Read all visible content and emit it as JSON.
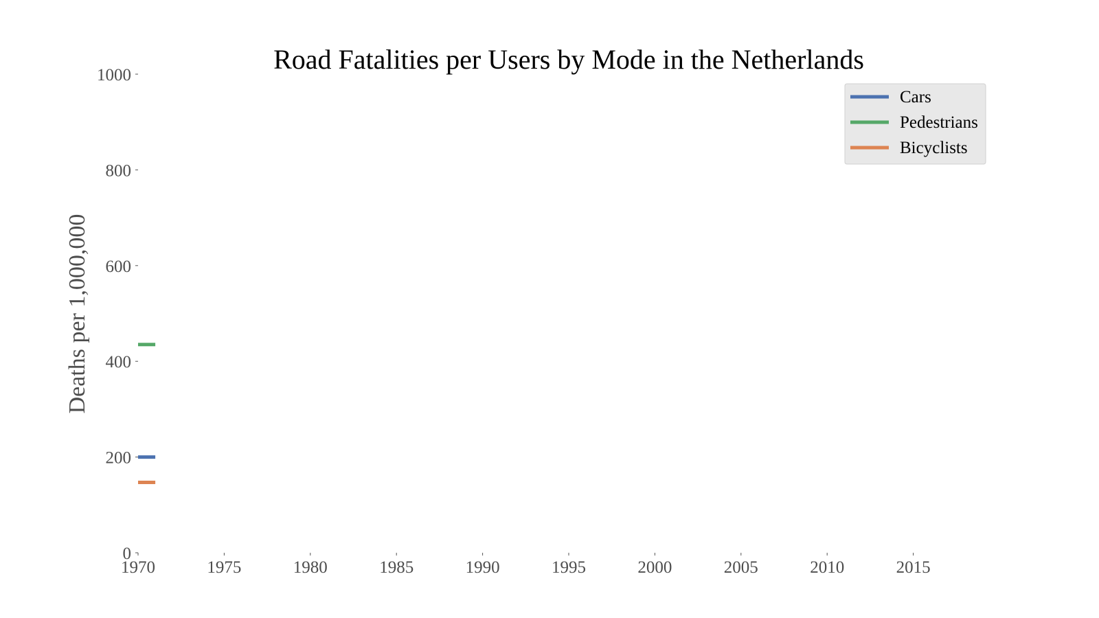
{
  "chart_data": {
    "type": "line",
    "title": "Road Fatalities per Users by Mode in the Netherlands",
    "xlabel": "",
    "ylabel": "Deaths per 1,000,000",
    "xlim": [
      1970,
      2020
    ],
    "ylim": [
      0,
      1000
    ],
    "x_ticks": [
      1970,
      1975,
      1980,
      1985,
      1990,
      1995,
      2000,
      2005,
      2010,
      2015
    ],
    "y_ticks": [
      0,
      200,
      400,
      600,
      800,
      1000
    ],
    "grid": false,
    "legend_position": "top-right",
    "series": [
      {
        "name": "Cars",
        "color": "#4c72b0",
        "x": [
          1970,
          1971
        ],
        "y": [
          200,
          200
        ]
      },
      {
        "name": "Pedestrians",
        "color": "#55a868",
        "x": [
          1970,
          1971
        ],
        "y": [
          435,
          435
        ]
      },
      {
        "name": "Bicyclists",
        "color": "#dd8452",
        "x": [
          1970,
          1971
        ],
        "y": [
          147,
          147
        ]
      }
    ]
  }
}
